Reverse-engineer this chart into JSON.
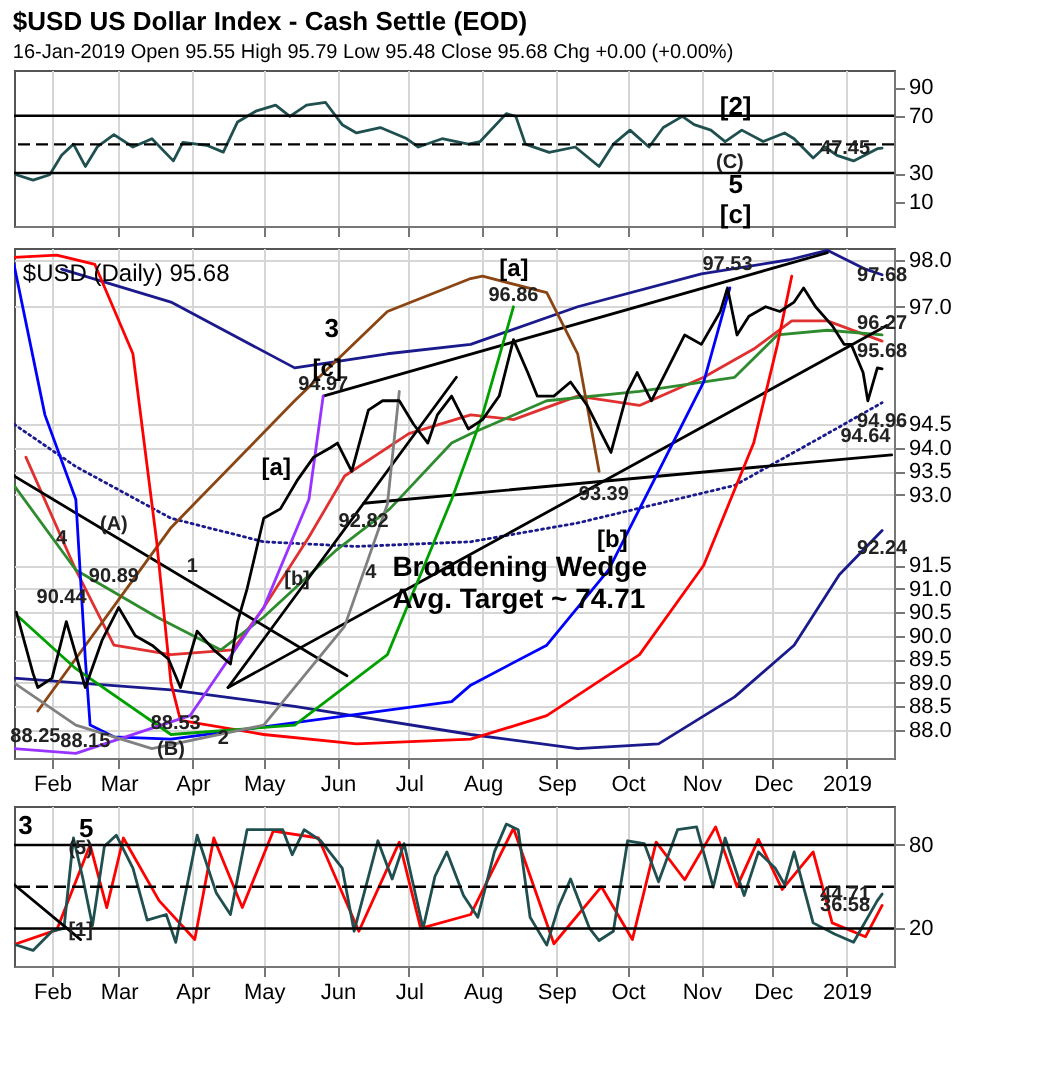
{
  "chart_data": [
    {
      "type": "line",
      "title": "$USD US Dollar Index - Cash Settle (EOD)",
      "subtitle": "16-Jan-2019   Open 95.55  High 95.79  Low 95.48  Close 95.68  Chg +0.00 (+0.00%)",
      "xlim": [
        "2018-01-16",
        "2019-01-21"
      ],
      "ylim": [
        -7,
        102
      ],
      "yticks": [
        10,
        30,
        70,
        90
      ],
      "grid": "x",
      "tick_labels": "y",
      "xticks": [
        {
          "value": "2018-02-01",
          "label": null
        },
        {
          "value": "2018-03-01",
          "label": null
        },
        {
          "value": "2018-04-01",
          "label": null
        },
        {
          "value": "2018-05-01",
          "label": null
        },
        {
          "value": "2018-06-01",
          "label": null
        },
        {
          "value": "2018-07-01",
          "label": null
        },
        {
          "value": "2018-08-01",
          "label": null
        },
        {
          "value": "2018-09-01",
          "label": null
        },
        {
          "value": "2018-10-01",
          "label": null
        },
        {
          "value": "2018-11-01",
          "label": null
        },
        {
          "value": "2018-12-01",
          "label": null
        },
        {
          "value": "2019-01-01",
          "label": null
        }
      ],
      "series": [
        {
          "color": "#1f4f4f",
          "x": [
            "2018-01-17",
            "2018-01-24",
            "2018-01-31",
            "2018-02-05",
            "2018-02-10",
            "2018-02-15",
            "2018-02-20",
            "2018-02-27",
            "2018-03-07",
            "2018-03-15",
            "2018-03-24",
            "2018-03-28",
            "2018-04-07",
            "2018-04-14",
            "2018-04-20",
            "2018-04-28",
            "2018-05-06",
            "2018-05-12",
            "2018-05-19",
            "2018-05-27",
            "2018-06-03",
            "2018-06-09",
            "2018-06-19",
            "2018-06-30",
            "2018-07-05",
            "2018-07-15",
            "2018-07-26",
            "2018-07-31",
            "2018-08-11",
            "2018-08-15",
            "2018-08-19",
            "2018-08-29",
            "2018-09-09",
            "2018-09-19",
            "2018-09-25",
            "2018-10-02",
            "2018-10-10",
            "2018-10-16",
            "2018-10-24",
            "2018-10-29",
            "2018-11-05",
            "2018-11-11",
            "2018-11-18",
            "2018-11-27",
            "2018-12-06",
            "2018-12-10",
            "2018-12-18",
            "2018-12-23",
            "2018-12-28",
            "2019-01-04",
            "2019-01-14",
            "2019-01-16"
          ],
          "values": [
            28.8,
            25,
            28.8,
            42.4,
            50.2,
            34.6,
            48.2,
            56.8,
            48.2,
            54,
            38.5,
            51.4,
            49.4,
            44.6,
            65.7,
            73.5,
            77.4,
            69.6,
            77.4,
            79.3,
            63.8,
            58,
            61.8,
            54.1,
            48.2,
            54,
            50.2,
            52,
            71.5,
            69.6,
            50.2,
            44.4,
            48.2,
            34.6,
            50.2,
            60,
            48.2,
            61.8,
            69.6,
            63.8,
            60,
            52,
            60,
            52,
            58,
            54,
            40.5,
            48.2,
            42.4,
            38.5,
            47,
            47.45
          ]
        }
      ],
      "ref_lines": [
        {
          "axis": "y",
          "value": 70,
          "color": "#000000",
          "line_style": "solid"
        },
        {
          "axis": "y",
          "value": 30,
          "color": "#000000",
          "line_style": "solid"
        },
        {
          "axis": "y",
          "value": 50,
          "color": "#000000",
          "line_style": "dashed"
        }
      ],
      "annotations": [
        "[2]",
        "5",
        "[c]",
        {
          "text": "(C)",
          "x": "2018-11-13",
          "y": 50.6
        },
        {
          "text": "47.45",
          "x": "2019-01-16",
          "y": 47.45
        }
      ]
    },
    {
      "type": "line",
      "xlim": [
        "2018-01-16",
        "2019-01-21"
      ],
      "ylim": [
        87.4,
        98.25
      ],
      "grid": true,
      "yticks": [
        {
          "value": 88,
          "label": "88.0"
        },
        {
          "value": 88.5,
          "label": "88.5"
        },
        {
          "value": 89,
          "label": "89.0"
        },
        {
          "value": 89.5,
          "label": "89.5"
        },
        {
          "value": 90,
          "label": "90.0"
        },
        {
          "value": 90.5,
          "label": "90.5"
        },
        {
          "value": 91,
          "label": "91.0"
        },
        {
          "value": 91.5,
          "label": "91.5"
        },
        {
          "value": 93,
          "label": "93.0"
        },
        {
          "value": 93.5,
          "label": "93.5"
        },
        {
          "value": 94,
          "label": "94.0"
        },
        {
          "value": 94.5,
          "label": "94.5"
        },
        {
          "value": 97,
          "label": "97.0"
        },
        {
          "value": 98,
          "label": "98.0"
        }
      ],
      "xticks": [
        {
          "value": "2018-02-01",
          "label": "Feb"
        },
        {
          "value": "2018-03-01",
          "label": "Mar"
        },
        {
          "value": "2018-04-01",
          "label": "Apr"
        },
        {
          "value": "2018-05-01",
          "label": "May"
        },
        {
          "value": "2018-06-01",
          "label": "Jun"
        },
        {
          "value": "2018-07-01",
          "label": "Jul"
        },
        {
          "value": "2018-08-01",
          "label": "Aug"
        },
        {
          "value": "2018-09-01",
          "label": "Sep"
        },
        {
          "value": "2018-10-01",
          "label": "Oct"
        },
        {
          "value": "2018-11-01",
          "label": "Nov"
        },
        {
          "value": "2018-12-01",
          "label": "Dec"
        },
        {
          "value": "2019-01-01",
          "label": "2019"
        }
      ],
      "series": [
        {
          "color": "#1a1a8c",
          "x": [
            "2018-02-05",
            "2018-03-23",
            "2018-05-14",
            "2018-06-22",
            "2018-07-27",
            "2018-09-10",
            "2018-11-01",
            "2018-12-08",
            "2018-12-24",
            "2019-01-09",
            "2019-01-16"
          ],
          "values": [
            97.8,
            97.1,
            95.7,
            96.0,
            96.2,
            97.0,
            97.7,
            98.0,
            98.2,
            97.8,
            97.68
          ]
        },
        {
          "color": "#1a1a8c",
          "x": [
            "2018-01-16",
            "2018-03-23",
            "2018-05-14",
            "2018-07-27",
            "2018-09-10",
            "2018-10-14",
            "2018-11-15",
            "2018-12-10",
            "2018-12-29",
            "2019-01-16"
          ],
          "values": [
            89.1,
            88.85,
            88.5,
            87.9,
            87.6,
            87.7,
            88.7,
            89.8,
            91.3,
            92.24
          ]
        },
        {
          "color": "#1a1a8c",
          "line_style": "dotted",
          "x": [
            "2018-01-16",
            "2018-02-11",
            "2018-03-23",
            "2018-05-01",
            "2018-06-09",
            "2018-07-27",
            "2018-09-10",
            "2018-11-15",
            "2018-12-24",
            "2019-01-16"
          ],
          "values": [
            94.5,
            93.6,
            92.5,
            92.0,
            91.9,
            92.0,
            92.4,
            93.2,
            94.3,
            94.96
          ]
        },
        {
          "color": "#e03030",
          "x": [
            "2018-01-21",
            "2018-02-11",
            "2018-02-27",
            "2018-03-23",
            "2018-04-18",
            "2018-05-01",
            "2018-05-20",
            "2018-06-04",
            "2018-07-01",
            "2018-07-27",
            "2018-08-14",
            "2018-09-10",
            "2018-10-06",
            "2018-11-02",
            "2018-11-23",
            "2018-12-09",
            "2018-12-24",
            "2019-01-16"
          ],
          "values": [
            93.8,
            91.4,
            89.8,
            89.6,
            89.7,
            90.6,
            92.1,
            93.4,
            94.3,
            94.7,
            94.6,
            95.1,
            94.9,
            95.5,
            96.1,
            96.7,
            96.7,
            96.27
          ]
        },
        {
          "color": "#2e8b2e",
          "x": [
            "2018-01-16",
            "2018-02-11",
            "2018-03-17",
            "2018-04-13",
            "2018-05-01",
            "2018-05-31",
            "2018-06-23",
            "2018-07-19",
            "2018-07-27",
            "2018-08-28",
            "2018-10-06",
            "2018-11-15",
            "2018-12-03",
            "2018-12-24",
            "2019-01-16"
          ],
          "values": [
            93.2,
            91.4,
            90.4,
            89.7,
            90.4,
            91.8,
            92.7,
            94.1,
            94.3,
            95.0,
            95.2,
            95.5,
            96.4,
            96.5,
            96.4
          ]
        },
        {
          "color": "#000000",
          "x": [
            "2018-05-26",
            "2018-12-24"
          ],
          "values": [
            95.1,
            98.15
          ]
        },
        {
          "color": "#000000",
          "x": [
            "2018-04-16",
            "2019-01-18"
          ],
          "values": [
            88.9,
            96.6
          ]
        },
        {
          "color": "#000000",
          "x": [
            "2018-04-16",
            "2018-07-21"
          ],
          "values": [
            88.9,
            95.5
          ]
        },
        {
          "color": "#000000",
          "x": [
            "2018-06-12",
            "2019-01-20"
          ],
          "values": [
            92.82,
            93.85
          ]
        },
        {
          "color": "#000000",
          "x": [
            "2018-01-16",
            "2018-06-05"
          ],
          "values": [
            93.4,
            89.15
          ]
        },
        {
          "color": "#8b4513",
          "x": [
            "2018-01-26",
            "2018-03-23",
            "2018-05-14",
            "2018-06-22",
            "2018-07-27",
            "2018-08-01",
            "2018-08-28",
            "2018-09-10",
            "2018-09-19"
          ],
          "values": [
            88.4,
            92.3,
            95.0,
            96.9,
            97.6,
            97.65,
            97.3,
            96.0,
            93.5
          ]
        },
        {
          "color": "#ff0000",
          "x": [
            "2018-01-16",
            "2018-02-03",
            "2018-02-19",
            "2018-03-07",
            "2018-03-17",
            "2018-03-23",
            "2018-03-27",
            "2018-05-01",
            "2018-06-09",
            "2018-07-27",
            "2018-08-28",
            "2018-10-06",
            "2018-11-02",
            "2018-11-23",
            "2018-12-03",
            "2018-12-09"
          ],
          "values": [
            98.05,
            98.1,
            97.9,
            96.0,
            92.0,
            89.0,
            88.2,
            87.9,
            87.7,
            87.8,
            88.3,
            89.6,
            91.5,
            94.1,
            96.2,
            97.65
          ]
        },
        {
          "color": "#0000ff",
          "x": [
            "2018-01-16",
            "2018-01-29",
            "2018-02-11",
            "2018-02-15",
            "2018-02-17",
            "2018-02-27",
            "2018-03-23",
            "2018-07-19",
            "2018-07-27",
            "2018-08-28",
            "2018-09-23",
            "2018-10-20",
            "2018-11-02",
            "2018-11-13"
          ],
          "values": [
            97.9,
            94.7,
            92.9,
            89.5,
            88.1,
            87.85,
            87.8,
            88.6,
            88.95,
            89.8,
            91.4,
            94.1,
            95.4,
            97.4
          ]
        },
        {
          "color": "#00a000",
          "x": [
            "2018-01-18",
            "2018-02-11",
            "2018-03-23",
            "2018-05-14",
            "2018-06-22",
            "2018-07-19",
            "2018-07-27",
            "2018-08-01",
            "2018-08-14"
          ],
          "values": [
            90.4,
            89.3,
            87.9,
            88.1,
            89.6,
            92.9,
            94.0,
            94.7,
            97.0
          ]
        },
        {
          "color": "#9933ff",
          "x": [
            "2018-01-16",
            "2018-02-11",
            "2018-03-31",
            "2018-05-01",
            "2018-05-20",
            "2018-05-26"
          ],
          "values": [
            87.6,
            87.5,
            88.3,
            90.6,
            92.9,
            95.1
          ]
        },
        {
          "color": "#808080",
          "x": [
            "2018-01-16",
            "2018-02-11",
            "2018-03-15",
            "2018-05-01",
            "2018-06-04",
            "2018-06-22",
            "2018-06-27"
          ],
          "values": [
            89.0,
            88.1,
            87.6,
            88.1,
            90.2,
            92.8,
            95.2
          ]
        },
        {
          "color": "#000000",
          "x": [
            "2018-01-17",
            "2018-01-24",
            "2018-01-26",
            "2018-02-01",
            "2018-02-07",
            "2018-02-15",
            "2018-02-22",
            "2018-03-01",
            "2018-03-08",
            "2018-03-15",
            "2018-03-22",
            "2018-03-27",
            "2018-04-03",
            "2018-04-10",
            "2018-04-17",
            "2018-04-20",
            "2018-04-24",
            "2018-05-01",
            "2018-05-08",
            "2018-05-15",
            "2018-05-22",
            "2018-05-29",
            "2018-06-01",
            "2018-06-07",
            "2018-06-14",
            "2018-06-20",
            "2018-06-27",
            "2018-07-03",
            "2018-07-09",
            "2018-07-13",
            "2018-07-19",
            "2018-07-26",
            "2018-08-01",
            "2018-08-08",
            "2018-08-14",
            "2018-08-20",
            "2018-08-24",
            "2018-08-31",
            "2018-09-07",
            "2018-09-14",
            "2018-09-21",
            "2018-09-24",
            "2018-10-01",
            "2018-10-05",
            "2018-10-11",
            "2018-10-18",
            "2018-10-25",
            "2018-11-01",
            "2018-11-09",
            "2018-11-12",
            "2018-11-16",
            "2018-11-21",
            "2018-11-28",
            "2018-12-04",
            "2018-12-10",
            "2018-12-14",
            "2018-12-19",
            "2018-12-26",
            "2018-12-31",
            "2019-01-03",
            "2019-01-08",
            "2019-01-10",
            "2019-01-14",
            "2019-01-16"
          ],
          "values": [
            90.5,
            89.2,
            88.9,
            89.1,
            90.3,
            88.9,
            89.9,
            90.6,
            90.0,
            89.8,
            89.5,
            88.9,
            90.1,
            89.7,
            89.4,
            90.3,
            91.0,
            92.5,
            92.7,
            93.3,
            93.8,
            94.0,
            94.1,
            93.5,
            94.8,
            95.0,
            95.0,
            94.5,
            94.1,
            94.7,
            95.1,
            94.4,
            94.6,
            95.1,
            96.3,
            95.6,
            95.1,
            95.1,
            95.4,
            94.9,
            94.2,
            93.9,
            95.2,
            95.6,
            95.0,
            95.7,
            96.4,
            96.2,
            96.9,
            97.4,
            96.4,
            96.8,
            97.0,
            96.9,
            97.1,
            97.4,
            97.0,
            96.6,
            96.2,
            96.2,
            95.6,
            95.0,
            95.7,
            95.68
          ]
        }
      ],
      "annotations": [
        "$USD (Daily) 95.68",
        "Broadening Wedge\nAvg. Target ~ 74.71",
        "[c]",
        "[a]",
        "[a]",
        "[b]",
        "3",
        {
          "text": "88.25",
          "x": "2018-01-25",
          "y": 88.25
        },
        {
          "text": "90.44",
          "x": "2018-02-05",
          "y": 90.44
        },
        {
          "text": "90.89",
          "x": "2018-02-27",
          "y": 90.89
        },
        {
          "text": "88.15",
          "x": "2018-02-15",
          "y": 88.15
        },
        {
          "text": "88.53",
          "x": "2018-03-25",
          "y": 88.53
        },
        {
          "text": "94.97",
          "x": "2018-05-26",
          "y": 94.97
        },
        {
          "text": "92.82",
          "x": "2018-06-12",
          "y": 92.82
        },
        {
          "text": "96.86",
          "x": "2018-08-14",
          "y": 96.86
        },
        {
          "text": "93.39",
          "x": "2018-09-21",
          "y": 93.39
        },
        {
          "text": "97.53",
          "x": "2018-11-12",
          "y": 97.53
        },
        {
          "text": "94.64",
          "x": "2019-01-09",
          "y": 94.64
        },
        {
          "text": "97.68",
          "x": "2019-01-16",
          "y": 97.68
        },
        {
          "text": "96.27",
          "x": "2019-01-16",
          "y": 96.27
        },
        {
          "text": "95.68",
          "x": "2019-01-16",
          "y": 95.68
        },
        {
          "text": "94.96",
          "x": "2019-01-16",
          "y": 94.96
        },
        {
          "text": "92.24",
          "x": "2019-01-16",
          "y": 92.24
        },
        {
          "text": "4",
          "x": "2018-02-05",
          "y": 91.7
        },
        {
          "text": "(A)",
          "x": "2018-02-27",
          "y": 92.0
        },
        {
          "text": "1",
          "x": "2018-04-01",
          "y": 91.1
        },
        {
          "text": "(B)",
          "x": "2018-03-23",
          "y": 87.6
        },
        {
          "text": "2",
          "x": "2018-04-14",
          "y": 88.2
        },
        {
          "text": "[b]",
          "x": "2018-05-15",
          "y": 91.6
        },
        {
          "text": "4",
          "x": "2018-06-15",
          "y": 91.75
        }
      ]
    },
    {
      "type": "line",
      "xlim": [
        "2018-01-16",
        "2019-01-21"
      ],
      "ylim": [
        -7,
        108
      ],
      "yticks": [
        20,
        80
      ],
      "grid": true,
      "xticks": [
        {
          "value": "2018-02-01",
          "label": "Feb"
        },
        {
          "value": "2018-03-01",
          "label": "Mar"
        },
        {
          "value": "2018-04-01",
          "label": "Apr"
        },
        {
          "value": "2018-05-01",
          "label": "May"
        },
        {
          "value": "2018-06-01",
          "label": "Jun"
        },
        {
          "value": "2018-07-01",
          "label": "Jul"
        },
        {
          "value": "2018-08-01",
          "label": "Aug"
        },
        {
          "value": "2018-09-01",
          "label": "Sep"
        },
        {
          "value": "2018-10-01",
          "label": "Oct"
        },
        {
          "value": "2018-11-01",
          "label": "Nov"
        },
        {
          "value": "2018-12-01",
          "label": "Dec"
        },
        {
          "value": "2019-01-01",
          "label": "2019"
        }
      ],
      "series": [
        {
          "color": "#ff0000",
          "x": [
            "2018-01-17",
            "2018-02-03",
            "2018-02-17",
            "2018-02-24",
            "2018-03-03",
            "2018-03-18",
            "2018-04-02",
            "2018-04-10",
            "2018-04-22",
            "2018-05-05",
            "2018-05-24",
            "2018-06-10",
            "2018-06-27",
            "2018-07-06",
            "2018-07-27",
            "2018-08-14",
            "2018-08-31",
            "2018-09-20",
            "2018-10-03",
            "2018-10-13",
            "2018-10-25",
            "2018-11-07",
            "2018-11-16",
            "2018-11-25",
            "2018-12-05",
            "2018-12-18",
            "2018-12-26",
            "2019-01-09",
            "2019-01-16"
          ],
          "values": [
            9,
            19,
            80,
            35,
            85,
            40,
            12,
            85,
            35,
            90,
            85,
            18,
            82,
            20,
            30,
            92,
            9,
            50,
            12,
            82,
            55,
            93,
            50,
            84,
            48,
            75,
            24,
            14,
            36.58
          ]
        },
        {
          "color": "#1f4f4f",
          "x": [
            "2018-01-17",
            "2018-01-24",
            "2018-02-01",
            "2018-02-06",
            "2018-02-10",
            "2018-02-14",
            "2018-02-18",
            "2018-02-23",
            "2018-02-28",
            "2018-03-07",
            "2018-03-13",
            "2018-03-21",
            "2018-03-25",
            "2018-04-03",
            "2018-04-11",
            "2018-04-17",
            "2018-04-24",
            "2018-05-09",
            "2018-05-13",
            "2018-05-18",
            "2018-05-25",
            "2018-06-03",
            "2018-06-08",
            "2018-06-18",
            "2018-06-24",
            "2018-06-29",
            "2018-07-07",
            "2018-07-12",
            "2018-07-17",
            "2018-07-24",
            "2018-07-30",
            "2018-08-06",
            "2018-08-11",
            "2018-08-16",
            "2018-08-21",
            "2018-08-28",
            "2018-09-02",
            "2018-09-07",
            "2018-09-15",
            "2018-09-19",
            "2018-09-25",
            "2018-10-01",
            "2018-10-08",
            "2018-10-14",
            "2018-10-22",
            "2018-10-30",
            "2018-11-06",
            "2018-11-11",
            "2018-11-19",
            "2018-11-25",
            "2018-12-02",
            "2018-12-06",
            "2018-12-10",
            "2018-12-18",
            "2018-12-27",
            "2019-01-04",
            "2019-01-14",
            "2019-01-16"
          ],
          "values": [
            8.1,
            4.2,
            18,
            20,
            85,
            55.5,
            22,
            79,
            87,
            63.4,
            26,
            30,
            10,
            87,
            45.7,
            30,
            91,
            91,
            73,
            91,
            83,
            63.4,
            18,
            83,
            55.5,
            81,
            20,
            57.5,
            75,
            43.7,
            28,
            75,
            95,
            91,
            28,
            8,
            35.8,
            55.5,
            20,
            11.3,
            18,
            83,
            81,
            53.5,
            91,
            93,
            49.6,
            85,
            43.7,
            75,
            63.4,
            51.6,
            75,
            24,
            16,
            10.1,
            40,
            44.71
          ]
        },
        {
          "color": "#000000",
          "x": [
            "2018-01-16",
            "2018-02-13"
          ],
          "values": [
            51.6,
            12
          ]
        }
      ],
      "ref_lines": [
        {
          "axis": "y",
          "value": 80,
          "color": "#000000",
          "line_style": "solid"
        },
        {
          "axis": "y",
          "value": 20,
          "color": "#000000",
          "line_style": "solid"
        },
        {
          "axis": "y",
          "value": 50,
          "color": "#000000",
          "line_style": "dashed"
        }
      ],
      "annotations": [
        "3",
        "5",
        {
          "text": "(5)",
          "x": "2018-02-13",
          "y": 64.7
        },
        {
          "text": "[1]",
          "x": "2018-02-13",
          "y": 31.8
        },
        {
          "text": "44.71",
          "x": "2019-01-16",
          "y": 44.71
        },
        {
          "text": "36.58",
          "x": "2019-01-16",
          "y": 36.58
        }
      ]
    }
  ]
}
